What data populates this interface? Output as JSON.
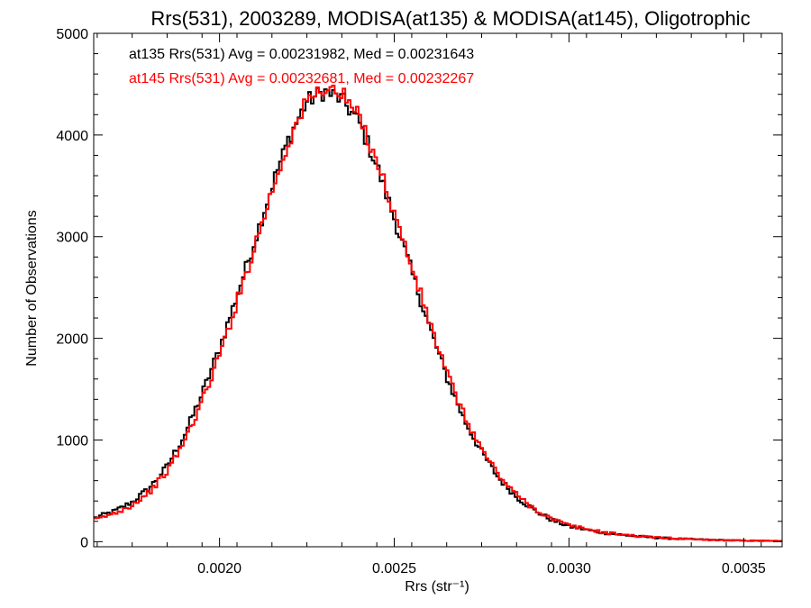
{
  "chart_data": {
    "type": "line",
    "title": "Rrs(531), 2003289, MODISA(at135) & MODISA(at145), Oligotrophic",
    "xlabel": "Rrs (str⁻¹)",
    "ylabel": "Number of Observations",
    "xlim": [
      0.00164,
      0.00361
    ],
    "ylim": [
      -50,
      5000
    ],
    "x_ticks": [
      {
        "value": 0.002,
        "label": "0.0020"
      },
      {
        "value": 0.0025,
        "label": "0.0025"
      },
      {
        "value": 0.003,
        "label": "0.0030"
      },
      {
        "value": 0.0035,
        "label": "0.0035"
      }
    ],
    "y_ticks": [
      {
        "value": 0,
        "label": "0"
      },
      {
        "value": 1000,
        "label": "1000"
      },
      {
        "value": 2000,
        "label": "2000"
      },
      {
        "value": 3000,
        "label": "3000"
      },
      {
        "value": 4000,
        "label": "4000"
      },
      {
        "value": 5000,
        "label": "5000"
      }
    ],
    "grid": false,
    "legend": "none",
    "series": [
      {
        "color": "#000000",
        "mean": 0.00231982,
        "peak_x": 0.002297,
        "peak_y": 4430,
        "x": [
          0.00164,
          0.0017,
          0.00175,
          0.0018,
          0.00185,
          0.0019,
          0.00195,
          0.002,
          0.00205,
          0.0021,
          0.00215,
          0.0022,
          0.00225,
          0.0023,
          0.00235,
          0.0024,
          0.00245,
          0.0025,
          0.00255,
          0.0026,
          0.00265,
          0.0027,
          0.00275,
          0.0028,
          0.00285,
          0.0029,
          0.00295,
          0.003,
          0.0031,
          0.0032,
          0.0033,
          0.0034,
          0.0035,
          0.00361
        ],
        "y": [
          230,
          300,
          390,
          530,
          740,
          1050,
          1450,
          1900,
          2420,
          2950,
          3500,
          3980,
          4330,
          4430,
          4350,
          4120,
          3700,
          3180,
          2650,
          2120,
          1620,
          1200,
          880,
          620,
          440,
          310,
          215,
          150,
          85,
          50,
          30,
          18,
          10,
          5
        ]
      },
      {
        "color": "#ff0000",
        "mean": 0.00232681,
        "peak_x": 0.002305,
        "peak_y": 4470,
        "x": [
          0.00164,
          0.0017,
          0.00175,
          0.0018,
          0.00185,
          0.0019,
          0.00195,
          0.002,
          0.00205,
          0.0021,
          0.00215,
          0.0022,
          0.00225,
          0.0023,
          0.00235,
          0.0024,
          0.00245,
          0.0025,
          0.00255,
          0.0026,
          0.00265,
          0.0027,
          0.00275,
          0.0028,
          0.00285,
          0.0029,
          0.00295,
          0.003,
          0.0031,
          0.0032,
          0.0033,
          0.0034,
          0.0035,
          0.00361
        ],
        "y": [
          210,
          280,
          360,
          490,
          690,
          990,
          1380,
          1830,
          2360,
          2900,
          3450,
          3950,
          4330,
          4470,
          4400,
          4170,
          3760,
          3230,
          2700,
          2170,
          1660,
          1240,
          910,
          650,
          460,
          325,
          225,
          160,
          90,
          53,
          32,
          19,
          11,
          6
        ]
      }
    ],
    "annotations": [
      {
        "text": "at135 Rrs(531) Avg = 0.00231982, Med = 0.00231643",
        "color": "#000000"
      },
      {
        "text": "at145 Rrs(531) Avg = 0.00232681, Med = 0.00232267",
        "color": "#ff0000"
      }
    ]
  }
}
